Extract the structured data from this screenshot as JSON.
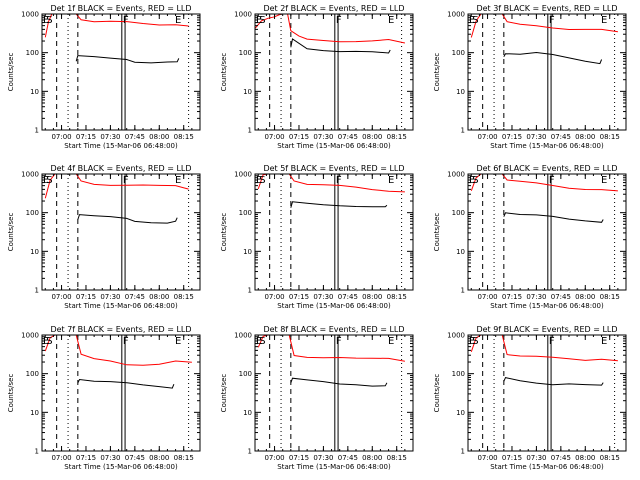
{
  "chart_data": [
    {
      "type": "line",
      "title": "Det 1f BLACK = Events, RED = LLD",
      "xlabel": "Start Time (15-Mar-06 06:48:00)",
      "ylabel": "Counts/sec",
      "yscale": "log",
      "ylim": [
        1,
        1000
      ],
      "xlim": [
        "06:48",
        "08:25"
      ],
      "xticks": [
        "07:00",
        "07:15",
        "07:30",
        "07:45",
        "08:00",
        "08:15"
      ],
      "yticks": [
        "1",
        "10",
        "100",
        "1000"
      ],
      "markers": [
        "E",
        "S",
        "F",
        "E"
      ],
      "series": [
        {
          "color": "#ff0000",
          "x": [
            "06:50",
            "06:52",
            "06:54",
            "06:56",
            "07:09",
            "07:12",
            "07:20",
            "07:30",
            "07:40",
            "07:50",
            "08:00",
            "08:10",
            "08:18"
          ],
          "values": [
            250,
            600,
            1000,
            1000,
            1000,
            750,
            640,
            620,
            600,
            560,
            540,
            560,
            500
          ]
        },
        {
          "color": "#000000",
          "x": [
            "07:09",
            "07:10",
            "07:20",
            "07:30",
            "07:40",
            "07:45",
            "07:55",
            "08:05",
            "08:11",
            "08:12"
          ],
          "values": [
            60,
            80,
            75,
            72,
            70,
            60,
            55,
            55,
            55,
            70
          ]
        }
      ]
    },
    {
      "type": "line",
      "title": "Det 2f BLACK = Events, RED = LLD",
      "xlabel": "Start Time (15-Mar-06 06:48:00)",
      "ylabel": "Counts/sec",
      "yscale": "log",
      "ylim": [
        1,
        1000
      ],
      "xlim": [
        "06:48",
        "08:25"
      ],
      "xticks": [
        "07:00",
        "07:15",
        "07:30",
        "07:45",
        "08:00",
        "08:15"
      ],
      "yticks": [
        "1",
        "10",
        "100",
        "1000"
      ],
      "markers": [
        "E",
        "S",
        "F",
        "E"
      ],
      "series": [
        {
          "color": "#ff0000",
          "x": [
            "06:48",
            "06:52",
            "06:56",
            "07:00",
            "07:04",
            "07:08",
            "07:10",
            "07:15",
            "07:20",
            "07:30",
            "07:40",
            "07:50",
            "08:00",
            "08:10",
            "08:20"
          ],
          "values": [
            400,
            650,
            800,
            900,
            1000,
            1000,
            350,
            260,
            230,
            220,
            200,
            190,
            190,
            210,
            180
          ]
        },
        {
          "color": "#000000",
          "x": [
            "07:10",
            "07:11",
            "07:20",
            "07:30",
            "07:40",
            "07:50",
            "08:00",
            "08:10",
            "08:11"
          ],
          "values": [
            130,
            220,
            130,
            120,
            110,
            105,
            100,
            95,
            120
          ]
        }
      ]
    },
    {
      "type": "line",
      "title": "Det 3f BLACK = Events, RED = LLD",
      "xlabel": "Start Time (15-Mar-06 06:48:00)",
      "ylabel": "Counts/sec",
      "yscale": "log",
      "ylim": [
        1,
        1000
      ],
      "xlim": [
        "06:48",
        "08:25"
      ],
      "xticks": [
        "07:00",
        "07:15",
        "07:30",
        "07:45",
        "08:00",
        "08:15"
      ],
      "yticks": [
        "1",
        "10",
        "100",
        "1000"
      ],
      "markers": [
        "E",
        "S",
        "F",
        "E"
      ],
      "series": [
        {
          "color": "#ff0000",
          "x": [
            "06:50",
            "06:53",
            "06:56",
            "07:09",
            "07:12",
            "07:20",
            "07:30",
            "07:40",
            "07:50",
            "08:00",
            "08:10",
            "08:20"
          ],
          "values": [
            250,
            700,
            1000,
            1000,
            600,
            520,
            500,
            460,
            420,
            400,
            380,
            330
          ]
        },
        {
          "color": "#000000",
          "x": [
            "07:10",
            "07:11",
            "07:20",
            "07:30",
            "07:40",
            "07:50",
            "08:00",
            "08:09",
            "08:10"
          ],
          "values": [
            80,
            100,
            95,
            100,
            85,
            70,
            60,
            55,
            70
          ]
        }
      ]
    },
    {
      "type": "line",
      "title": "Det 4f BLACK = Events, RED = LLD",
      "xlabel": "Start Time (15-Mar-06 06:48:00)",
      "ylabel": "Counts/sec",
      "yscale": "log",
      "ylim": [
        1,
        1000
      ],
      "xlim": [
        "06:48",
        "08:25"
      ],
      "xticks": [
        "07:00",
        "07:15",
        "07:30",
        "07:45",
        "08:00",
        "08:15"
      ],
      "yticks": [
        "1",
        "10",
        "100",
        "1000"
      ],
      "markers": [
        "E",
        "S",
        "F",
        "E"
      ],
      "series": [
        {
          "color": "#ff0000",
          "x": [
            "06:50",
            "06:53",
            "06:56",
            "07:09",
            "07:12",
            "07:20",
            "07:30",
            "07:40",
            "07:50",
            "08:00",
            "08:10",
            "08:18"
          ],
          "values": [
            250,
            700,
            1000,
            1000,
            650,
            560,
            540,
            520,
            500,
            480,
            490,
            420
          ]
        },
        {
          "color": "#000000",
          "x": [
            "07:10",
            "07:11",
            "07:20",
            "07:30",
            "07:40",
            "07:45",
            "07:55",
            "08:05",
            "08:10",
            "08:11"
          ],
          "values": [
            70,
            90,
            80,
            75,
            70,
            62,
            58,
            55,
            58,
            70
          ]
        }
      ]
    },
    {
      "type": "line",
      "title": "Det 5f BLACK = Events, RED = LLD",
      "xlabel": "Start Time (15-Mar-06 06:48:00)",
      "ylabel": "Counts/sec",
      "yscale": "log",
      "ylim": [
        1,
        1000
      ],
      "xlim": [
        "06:48",
        "08:25"
      ],
      "xticks": [
        "07:00",
        "07:15",
        "07:30",
        "07:45",
        "08:00",
        "08:15"
      ],
      "yticks": [
        "1",
        "10",
        "100",
        "1000"
      ],
      "markers": [
        "E",
        "S",
        "F",
        "E"
      ],
      "series": [
        {
          "color": "#ff0000",
          "x": [
            "06:50",
            "06:53",
            "06:56",
            "07:09",
            "07:12",
            "07:20",
            "07:30",
            "07:40",
            "07:50",
            "08:00",
            "08:10",
            "08:20"
          ],
          "values": [
            400,
            900,
            1000,
            1000,
            700,
            560,
            520,
            480,
            440,
            400,
            380,
            360
          ]
        },
        {
          "color": "#000000",
          "x": [
            "07:10",
            "07:11",
            "07:20",
            "07:30",
            "07:40",
            "07:50",
            "08:00",
            "08:08",
            "08:09"
          ],
          "values": [
            130,
            180,
            170,
            165,
            160,
            150,
            140,
            135,
            150
          ]
        }
      ]
    },
    {
      "type": "line",
      "title": "Det 6f BLACK = Events, RED = LLD",
      "xlabel": "Start Time (15-Mar-06 06:48:00)",
      "ylabel": "Counts/sec",
      "yscale": "log",
      "ylim": [
        1,
        1000
      ],
      "xlim": [
        "06:48",
        "08:25"
      ],
      "xticks": [
        "07:00",
        "07:15",
        "07:30",
        "07:45",
        "08:00",
        "08:15"
      ],
      "yticks": [
        "1",
        "10",
        "100",
        "1000"
      ],
      "markers": [
        "E",
        "S",
        "F",
        "E"
      ],
      "series": [
        {
          "color": "#ff0000",
          "x": [
            "06:50",
            "06:53",
            "06:56",
            "07:09",
            "07:12",
            "07:20",
            "07:30",
            "07:40",
            "07:50",
            "08:00",
            "08:10",
            "08:20"
          ],
          "values": [
            350,
            800,
            1000,
            1000,
            700,
            620,
            560,
            500,
            450,
            420,
            400,
            350
          ]
        },
        {
          "color": "#000000",
          "x": [
            "07:10",
            "07:11",
            "07:20",
            "07:30",
            "07:40",
            "07:50",
            "08:00",
            "08:10",
            "08:11"
          ],
          "values": [
            75,
            100,
            95,
            92,
            80,
            65,
            58,
            56,
            70
          ]
        }
      ]
    },
    {
      "type": "line",
      "title": "Det 7f BLACK = Events, RED = LLD",
      "xlabel": "Start Time (15-Mar-06 06:48:00)",
      "ylabel": "Counts/sec",
      "yscale": "log",
      "ylim": [
        1,
        1000
      ],
      "xlim": [
        "06:48",
        "08:25"
      ],
      "xticks": [
        "07:00",
        "07:15",
        "07:30",
        "07:45",
        "08:00",
        "08:15"
      ],
      "yticks": [
        "1",
        "10",
        "100",
        "1000"
      ],
      "markers": [
        "E",
        "S",
        "F",
        "E"
      ],
      "series": [
        {
          "color": "#ff0000",
          "x": [
            "06:50",
            "06:53",
            "06:56",
            "07:09",
            "07:12",
            "07:20",
            "07:30",
            "07:40",
            "07:50",
            "08:00",
            "08:10",
            "08:20"
          ],
          "values": [
            400,
            900,
            1000,
            1000,
            300,
            240,
            220,
            180,
            170,
            170,
            200,
            190
          ]
        },
        {
          "color": "#000000",
          "x": [
            "07:10",
            "07:11",
            "07:20",
            "07:30",
            "07:40",
            "07:50",
            "08:00",
            "08:08",
            "08:09"
          ],
          "values": [
            60,
            75,
            65,
            60,
            55,
            50,
            48,
            45,
            55
          ]
        }
      ]
    },
    {
      "type": "line",
      "title": "Det 8f BLACK = Events, RED = LLD",
      "xlabel": "Start Time (15-Mar-06 06:48:00)",
      "ylabel": "Counts/sec",
      "yscale": "log",
      "ylim": [
        1,
        1000
      ],
      "xlim": [
        "06:48",
        "08:25"
      ],
      "xticks": [
        "07:00",
        "07:15",
        "07:30",
        "07:45",
        "08:00",
        "08:15"
      ],
      "yticks": [
        "1",
        "10",
        "100",
        "1000"
      ],
      "markers": [
        "E",
        "S",
        "F",
        "E"
      ],
      "series": [
        {
          "color": "#ff0000",
          "x": [
            "06:50",
            "06:53",
            "06:56",
            "07:09",
            "07:12",
            "07:20",
            "07:30",
            "07:40",
            "07:50",
            "08:00",
            "08:10",
            "08:20"
          ],
          "values": [
            500,
            900,
            1000,
            1000,
            300,
            280,
            270,
            260,
            240,
            240,
            250,
            220
          ]
        },
        {
          "color": "#000000",
          "x": [
            "07:10",
            "07:11",
            "07:20",
            "07:30",
            "07:40",
            "07:50",
            "08:00",
            "08:08",
            "08:09"
          ],
          "values": [
            60,
            75,
            65,
            60,
            55,
            55,
            50,
            48,
            55
          ]
        }
      ]
    },
    {
      "type": "line",
      "title": "Det 9f BLACK = Events, RED = LLD",
      "xlabel": "Start Time (15-Mar-06 06:48:00)",
      "ylabel": "Counts/sec",
      "yscale": "log",
      "ylim": [
        1,
        1000
      ],
      "xlim": [
        "06:48",
        "08:25"
      ],
      "xticks": [
        "07:00",
        "07:15",
        "07:30",
        "07:45",
        "08:00",
        "08:15"
      ],
      "yticks": [
        "1",
        "10",
        "100",
        "1000"
      ],
      "markers": [
        "E",
        "S",
        "F",
        "E"
      ],
      "series": [
        {
          "color": "#ff0000",
          "x": [
            "06:50",
            "06:53",
            "06:56",
            "07:09",
            "07:12",
            "07:20",
            "07:30",
            "07:40",
            "07:50",
            "08:00",
            "08:10",
            "08:20"
          ],
          "values": [
            350,
            800,
            1000,
            1000,
            330,
            290,
            270,
            250,
            240,
            230,
            250,
            220
          ]
        },
        {
          "color": "#000000",
          "x": [
            "07:10",
            "07:11",
            "07:20",
            "07:30",
            "07:40",
            "07:50",
            "08:00",
            "08:10",
            "08:11"
          ],
          "values": [
            60,
            75,
            65,
            60,
            55,
            55,
            50,
            48,
            58
          ]
        }
      ]
    }
  ]
}
